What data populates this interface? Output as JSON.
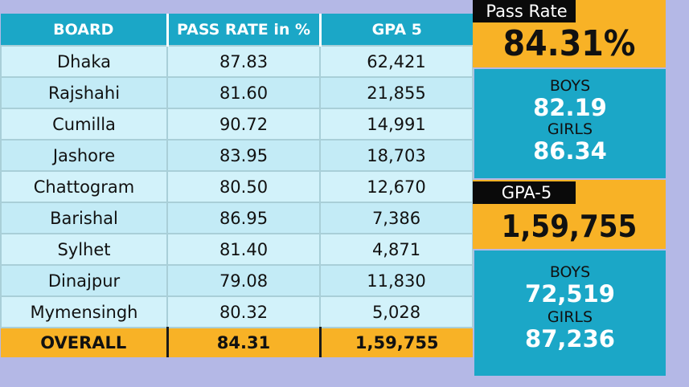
{
  "table": {
    "headers": [
      "BOARD",
      "PASS RATE in %",
      "GPA 5"
    ],
    "rows": [
      [
        "Dhaka",
        "87.83",
        "62,421"
      ],
      [
        "Rajshahi",
        "81.60",
        "21,855"
      ],
      [
        "Cumilla",
        "90.72",
        "14,991"
      ],
      [
        "Jashore",
        "83.95",
        "18,703"
      ],
      [
        "Chattogram",
        "80.50",
        "12,670"
      ],
      [
        "Barishal",
        "86.95",
        "7,386"
      ],
      [
        "Sylhet",
        "81.40",
        "4,871"
      ],
      [
        "Dinajpur",
        "79.08",
        "11,830"
      ],
      [
        "Mymensingh",
        "80.32",
        "5,028"
      ]
    ],
    "footer": [
      "OVERALL",
      "84.31",
      "1,59,755"
    ]
  },
  "pass_rate": {
    "label": "Pass Rate",
    "value": "84.31%",
    "boys_label": "BOYS",
    "boys_value": "82.19",
    "girls_label": "GIRLS",
    "girls_value": "86.34"
  },
  "gpa5": {
    "label": "GPA-5",
    "value": "1,59,755",
    "boys_label": "BOYS",
    "boys_value": "72,519",
    "girls_label": "GIRLS",
    "girls_value": "87,236"
  },
  "colors": {
    "header_blue": "#1ba7c7",
    "accent_yellow": "#f8b226",
    "row_light": "#d2f2fa",
    "background": "#b4b8e6"
  }
}
